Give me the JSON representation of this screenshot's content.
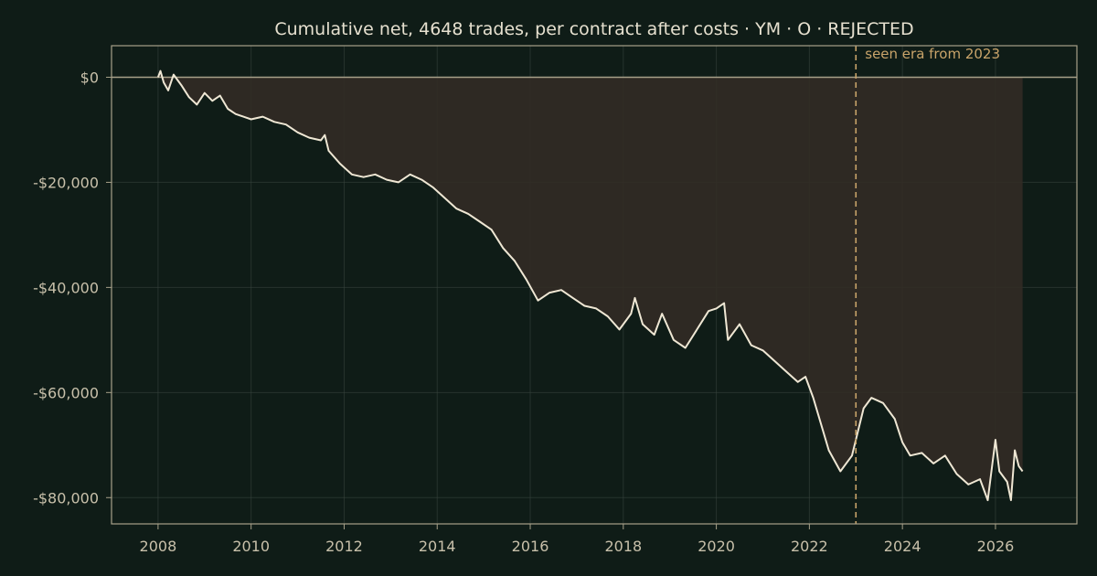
{
  "chart_data": {
    "type": "area",
    "title": "Cumulative net, 4648 trades, per contract after costs  ·  YM · O · REJECTED",
    "xlabel": "",
    "ylabel": "",
    "x_ticks": [
      "2008",
      "2010",
      "2012",
      "2014",
      "2016",
      "2018",
      "2020",
      "2022",
      "2024",
      "2026"
    ],
    "y_ticks": [
      {
        "value": 0,
        "label": "$0"
      },
      {
        "value": -20000,
        "label": "-$20,000"
      },
      {
        "value": -40000,
        "label": "-$40,000"
      },
      {
        "value": -60000,
        "label": "-$60,000"
      },
      {
        "value": -80000,
        "label": "-$80,000"
      }
    ],
    "xlim": [
      "2007-01",
      "2027-10"
    ],
    "ylim": [
      -85000,
      6000
    ],
    "grid": true,
    "annotation": {
      "date": "2023-01-01",
      "text": "seen era from 2023"
    },
    "baseline": 0,
    "series": [
      {
        "points": [
          [
            "2008-01-01",
            0
          ],
          [
            "2008-01-20",
            1200
          ],
          [
            "2008-02-15",
            -1000
          ],
          [
            "2008-03-20",
            -2500
          ],
          [
            "2008-05-01",
            500
          ],
          [
            "2008-07-01",
            -1500
          ],
          [
            "2008-09-01",
            -3800
          ],
          [
            "2008-11-01",
            -5200
          ],
          [
            "2009-01-01",
            -3000
          ],
          [
            "2009-03-01",
            -4500
          ],
          [
            "2009-05-01",
            -3500
          ],
          [
            "2009-07-01",
            -6000
          ],
          [
            "2009-09-01",
            -7000
          ],
          [
            "2009-11-01",
            -7500
          ],
          [
            "2010-01-01",
            -8000
          ],
          [
            "2010-04-01",
            -7500
          ],
          [
            "2010-07-01",
            -8500
          ],
          [
            "2010-10-01",
            -9000
          ],
          [
            "2011-01-01",
            -10500
          ],
          [
            "2011-04-01",
            -11500
          ],
          [
            "2011-07-01",
            -12000
          ],
          [
            "2011-08-01",
            -11000
          ],
          [
            "2011-09-01",
            -14000
          ],
          [
            "2011-12-01",
            -16500
          ],
          [
            "2012-03-01",
            -18500
          ],
          [
            "2012-06-01",
            -19000
          ],
          [
            "2012-09-01",
            -18500
          ],
          [
            "2012-12-01",
            -19500
          ],
          [
            "2013-03-01",
            -20000
          ],
          [
            "2013-06-01",
            -18500
          ],
          [
            "2013-09-01",
            -19500
          ],
          [
            "2013-12-01",
            -21000
          ],
          [
            "2014-03-01",
            -23000
          ],
          [
            "2014-06-01",
            -25000
          ],
          [
            "2014-09-01",
            -26000
          ],
          [
            "2014-12-01",
            -27500
          ],
          [
            "2015-03-01",
            -29000
          ],
          [
            "2015-06-01",
            -32500
          ],
          [
            "2015-09-01",
            -35000
          ],
          [
            "2015-12-01",
            -38500
          ],
          [
            "2016-03-01",
            -42500
          ],
          [
            "2016-06-01",
            -41000
          ],
          [
            "2016-09-01",
            -40500
          ],
          [
            "2016-12-01",
            -42000
          ],
          [
            "2017-03-01",
            -43500
          ],
          [
            "2017-06-01",
            -44000
          ],
          [
            "2017-09-01",
            -45500
          ],
          [
            "2017-12-01",
            -48000
          ],
          [
            "2018-03-01",
            -45000
          ],
          [
            "2018-04-01",
            -42000
          ],
          [
            "2018-06-01",
            -47000
          ],
          [
            "2018-09-01",
            -49000
          ],
          [
            "2018-11-01",
            -45000
          ],
          [
            "2019-02-01",
            -50000
          ],
          [
            "2019-05-01",
            -51500
          ],
          [
            "2019-08-01",
            -48000
          ],
          [
            "2019-11-01",
            -44500
          ],
          [
            "2020-01-01",
            -44000
          ],
          [
            "2020-03-01",
            -43000
          ],
          [
            "2020-04-01",
            -50000
          ],
          [
            "2020-07-01",
            -47000
          ],
          [
            "2020-10-01",
            -51000
          ],
          [
            "2021-01-01",
            -52000
          ],
          [
            "2021-04-01",
            -54000
          ],
          [
            "2021-07-01",
            -56000
          ],
          [
            "2021-10-01",
            -58000
          ],
          [
            "2021-12-01",
            -57000
          ],
          [
            "2022-02-01",
            -61000
          ],
          [
            "2022-04-01",
            -66000
          ],
          [
            "2022-06-01",
            -71000
          ],
          [
            "2022-09-01",
            -75000
          ],
          [
            "2022-12-01",
            -72000
          ],
          [
            "2023-03-01",
            -63000
          ],
          [
            "2023-05-01",
            -61000
          ],
          [
            "2023-08-01",
            -62000
          ],
          [
            "2023-11-01",
            -65000
          ],
          [
            "2024-01-01",
            -69500
          ],
          [
            "2024-03-01",
            -72000
          ],
          [
            "2024-06-01",
            -71500
          ],
          [
            "2024-09-01",
            -73500
          ],
          [
            "2024-12-01",
            -72000
          ],
          [
            "2025-03-01",
            -75500
          ],
          [
            "2025-06-01",
            -77500
          ],
          [
            "2025-09-01",
            -76500
          ],
          [
            "2025-11-01",
            -80500
          ],
          [
            "2026-01-01",
            -69000
          ],
          [
            "2026-02-01",
            -75000
          ],
          [
            "2026-04-01",
            -77000
          ],
          [
            "2026-05-01",
            -80500
          ],
          [
            "2026-06-01",
            -71000
          ],
          [
            "2026-07-01",
            -74000
          ],
          [
            "2026-08-01",
            -75000
          ]
        ]
      }
    ]
  },
  "colors": {
    "background": "#0f1c17",
    "line": "#efe7d4",
    "area_fill": "#322b25",
    "axis": "#a7a089",
    "annotation": "#c9a46a"
  }
}
